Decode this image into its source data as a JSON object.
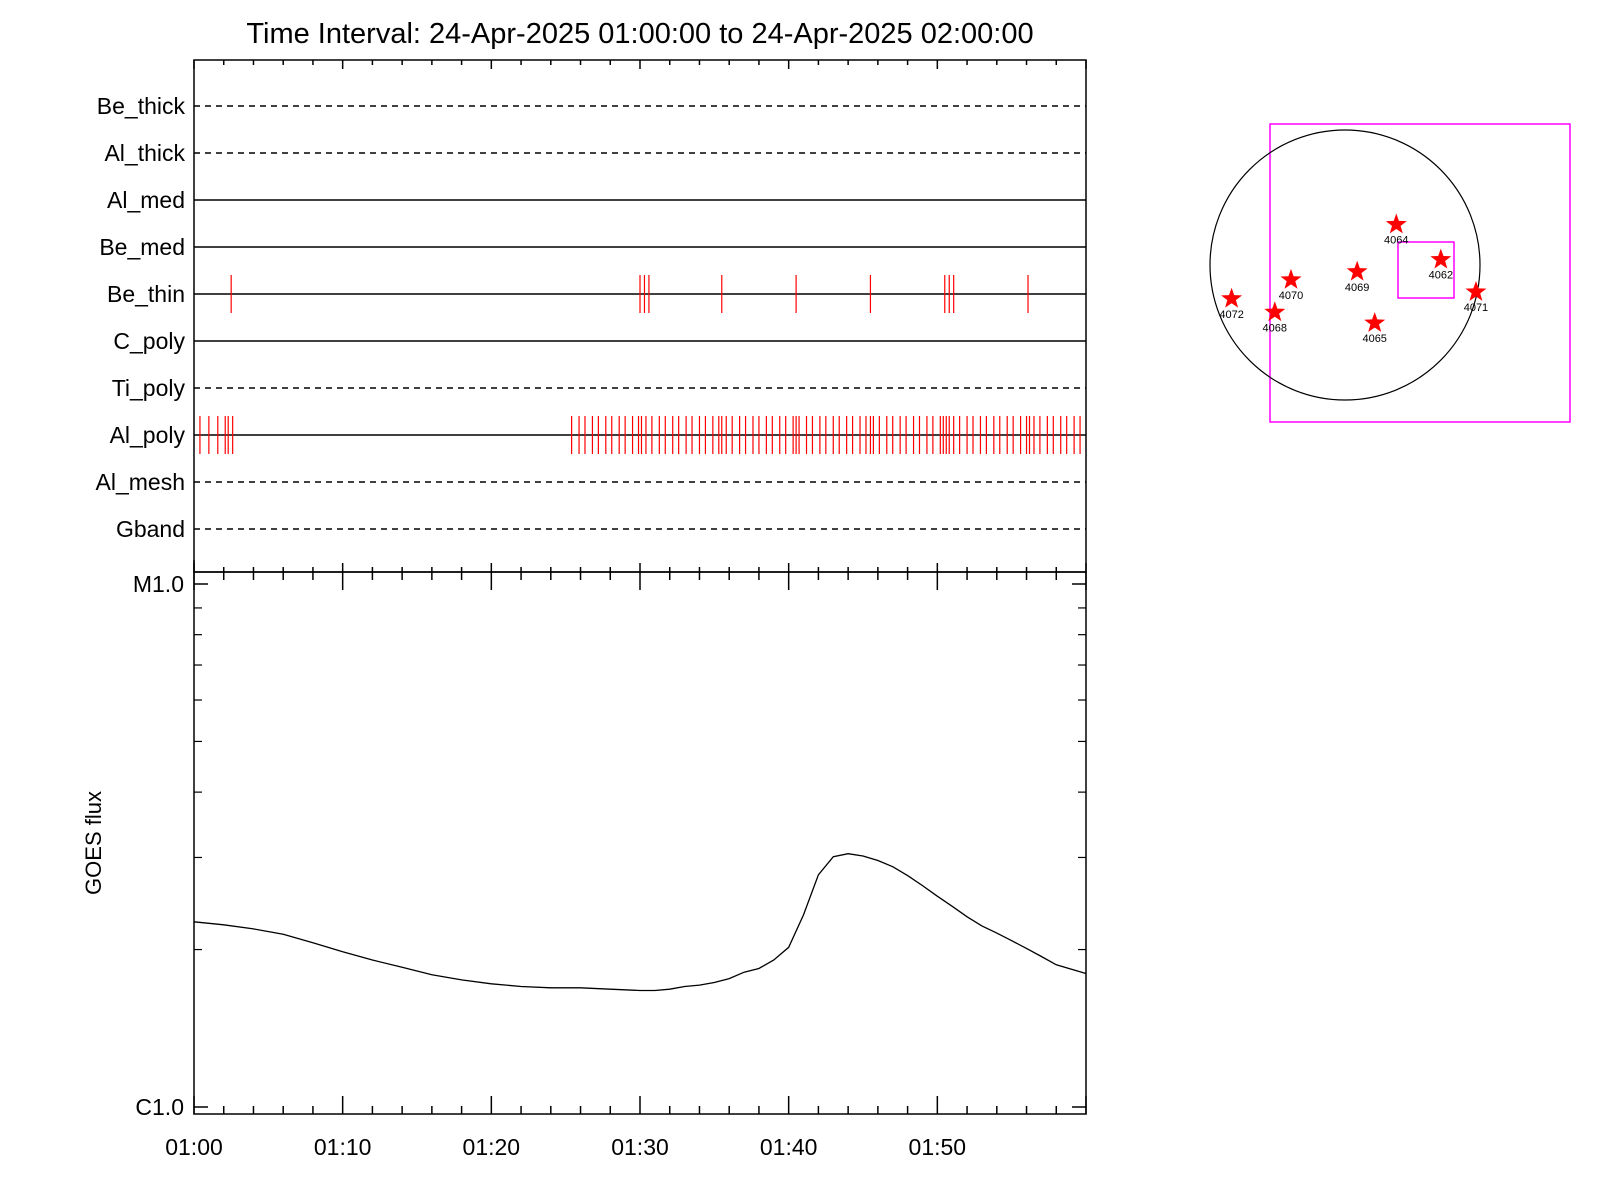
{
  "chart_data": [
    {
      "type": "event-timeline",
      "title": "Time Interval: 24-Apr-2025 01:00:00 to 24-Apr-2025 02:00:00",
      "xlim": [
        "01:00",
        "02:00"
      ],
      "filters": [
        {
          "label": "Be_thick",
          "style": "dashed",
          "events": []
        },
        {
          "label": "Al_thick",
          "style": "dashed",
          "events": []
        },
        {
          "label": "Al_med",
          "style": "solid",
          "events": []
        },
        {
          "label": "Be_med",
          "style": "solid",
          "events": []
        },
        {
          "label": "Be_thin",
          "style": "solid",
          "events": [
            2.5,
            30.0,
            30.3,
            30.6,
            35.5,
            40.5,
            45.5,
            50.5,
            50.8,
            51.1,
            56.1
          ]
        },
        {
          "label": "C_poly",
          "style": "solid",
          "events": []
        },
        {
          "label": "Ti_poly",
          "style": "dashed",
          "events": []
        },
        {
          "label": "Al_poly",
          "style": "solid",
          "events": [
            0.4,
            1.0,
            1.6,
            2.1,
            2.3,
            2.6,
            25.4,
            25.9,
            26.3,
            26.8,
            27.2,
            27.7,
            28.1,
            28.6,
            29.0,
            29.5,
            29.9,
            30.1,
            30.4,
            30.8,
            31.3,
            31.7,
            32.2,
            32.6,
            33.1,
            33.5,
            34.0,
            34.4,
            34.9,
            35.3,
            35.5,
            35.8,
            36.2,
            36.7,
            37.1,
            37.6,
            38.0,
            38.5,
            38.9,
            39.4,
            39.8,
            40.3,
            40.5,
            40.7,
            41.2,
            41.6,
            42.1,
            42.5,
            43.0,
            43.4,
            43.9,
            44.3,
            44.8,
            45.2,
            45.5,
            45.7,
            46.1,
            46.6,
            47.0,
            47.5,
            47.9,
            48.4,
            48.8,
            49.3,
            49.7,
            50.2,
            50.4,
            50.6,
            50.8,
            51.1,
            51.5,
            52.0,
            52.4,
            52.9,
            53.3,
            53.8,
            54.2,
            54.7,
            55.1,
            55.6,
            56.0,
            56.2,
            56.5,
            56.9,
            57.4,
            57.8,
            58.3,
            58.7,
            59.2,
            59.6
          ]
        },
        {
          "label": "Al_mesh",
          "style": "dashed",
          "events": []
        },
        {
          "label": "Gband",
          "style": "dashed",
          "events": []
        }
      ],
      "event_color": "#ff0000"
    },
    {
      "type": "line",
      "ylabel": "GOES flux",
      "yscale": "log",
      "ylim": [
        1e-06,
        1e-05
      ],
      "ytick_labels": [
        "C1.0",
        "M1.0"
      ],
      "xlim": [
        0,
        60
      ],
      "xtick_labels": [
        "01:00",
        "01:10",
        "01:20",
        "01:30",
        "01:40",
        "01:50"
      ],
      "x_minutes": [
        0,
        2,
        4,
        6,
        8,
        10,
        12,
        14,
        16,
        18,
        20,
        22,
        24,
        26,
        28,
        30,
        31,
        32,
        33,
        34,
        35,
        36,
        37,
        38,
        39,
        40,
        41,
        42,
        43,
        44,
        45,
        46,
        47,
        48,
        49,
        50,
        51,
        52,
        53,
        54,
        55,
        56,
        57,
        58,
        59.99
      ],
      "y": [
        2.26e-06,
        2.23e-06,
        2.19e-06,
        2.14e-06,
        2.06e-06,
        1.98e-06,
        1.91e-06,
        1.85e-06,
        1.79e-06,
        1.75e-06,
        1.72e-06,
        1.7e-06,
        1.69e-06,
        1.69e-06,
        1.68e-06,
        1.67e-06,
        1.67e-06,
        1.68e-06,
        1.7e-06,
        1.71e-06,
        1.73e-06,
        1.76e-06,
        1.81e-06,
        1.84e-06,
        1.91e-06,
        2.02e-06,
        2.33e-06,
        2.78e-06,
        3.01e-06,
        3.05e-06,
        3.02e-06,
        2.96e-06,
        2.88e-06,
        2.77e-06,
        2.65e-06,
        2.53e-06,
        2.42e-06,
        2.31e-06,
        2.22e-06,
        2.15e-06,
        2.08e-06,
        2.01e-06,
        1.94e-06,
        1.87e-06,
        1.8e-06
      ],
      "grid": false
    },
    {
      "type": "solar-disk-map",
      "regions": [
        {
          "label": "4064",
          "x": 0.38,
          "y": 0.3
        },
        {
          "label": "4062",
          "x": 0.71,
          "y": 0.04
        },
        {
          "label": "4069",
          "x": 0.09,
          "y": -0.05
        },
        {
          "label": "4070",
          "x": -0.4,
          "y": -0.11
        },
        {
          "label": "4071",
          "x": 0.97,
          "y": -0.2
        },
        {
          "label": "4072",
          "x": -0.84,
          "y": -0.25
        },
        {
          "label": "4068",
          "x": -0.52,
          "y": -0.35
        },
        {
          "label": "4065",
          "x": 0.22,
          "y": -0.43
        }
      ],
      "marker_color": "#ff0000",
      "fov_color": "#ff00ff"
    }
  ]
}
